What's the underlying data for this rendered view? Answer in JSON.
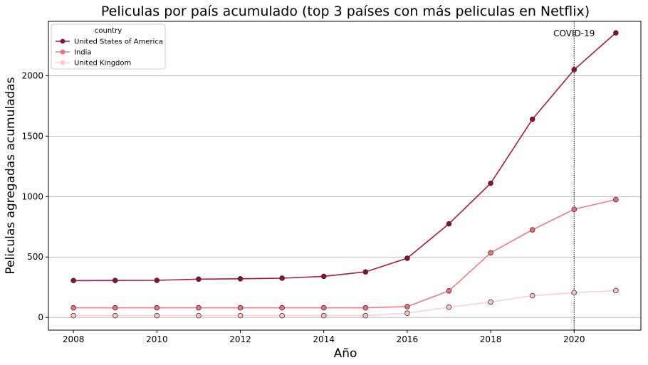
{
  "chart_data": {
    "type": "line",
    "title": "Peliculas por país acumulado (top 3 países con más peliculas en Netflix)",
    "xlabel": "Año",
    "ylabel": "Peliculas agregadas acumuladas",
    "x": [
      2008,
      2009,
      2010,
      2011,
      2012,
      2013,
      2014,
      2015,
      2016,
      2017,
      2018,
      2019,
      2020,
      2021
    ],
    "xlim": [
      2007.4,
      2021.6
    ],
    "ylim": [
      -105,
      2450
    ],
    "xticks": [
      2008,
      2010,
      2012,
      2014,
      2016,
      2018,
      2020
    ],
    "xtick_labels": [
      "2008",
      "2010",
      "2012",
      "2014",
      "2016",
      "2018",
      "2020"
    ],
    "yticks": [
      0,
      500,
      1000,
      1500,
      2000
    ],
    "ytick_labels": [
      "0",
      "500",
      "1000",
      "1500",
      "2000"
    ],
    "grid": "y",
    "legend": {
      "title": "country",
      "placement": "top-left"
    },
    "series": [
      {
        "name": "United States of America",
        "color": "#b0154a",
        "marker_color": "#8c0c38",
        "values": [
          305,
          306,
          307,
          317,
          320,
          325,
          340,
          377,
          490,
          775,
          1110,
          1640,
          2050,
          2355
        ]
      },
      {
        "name": "India",
        "color": "#f47b8a",
        "marker_color": "#e8707f",
        "values": [
          80,
          80,
          80,
          80,
          80,
          80,
          80,
          80,
          90,
          220,
          535,
          725,
          895,
          975
        ]
      },
      {
        "name": "United Kingdom",
        "color": "#fcd0d2",
        "marker_color": "#fbc6c8",
        "values": [
          15,
          15,
          15,
          15,
          15,
          15,
          15,
          15,
          35,
          85,
          128,
          180,
          205,
          222
        ]
      }
    ],
    "annotations": [
      {
        "x": 2020,
        "label": "COVID-19",
        "line_style": "dotted"
      }
    ]
  }
}
